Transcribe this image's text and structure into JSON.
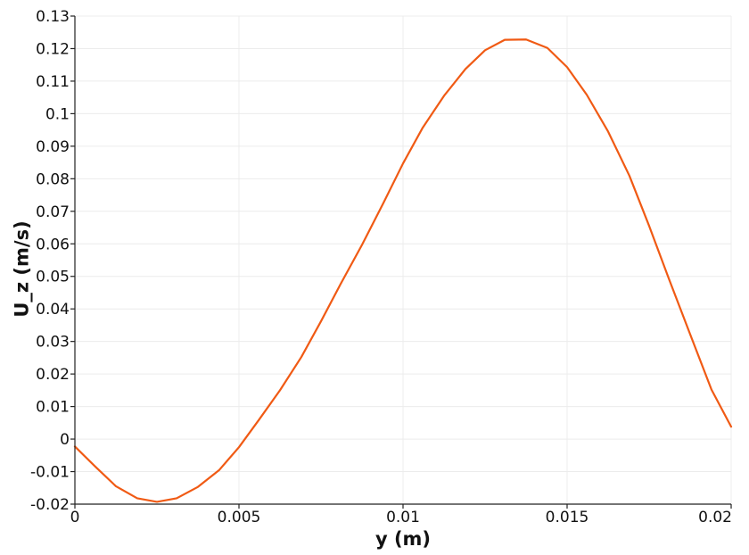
{
  "chart_data": {
    "type": "line",
    "title": "",
    "xlabel": "y (m)",
    "ylabel": "U_z (m/s)",
    "xlim": [
      0,
      0.02
    ],
    "ylim": [
      -0.02,
      0.13
    ],
    "x_ticks": [
      {
        "value": 0,
        "label": "0"
      },
      {
        "value": 0.005,
        "label": "0.005"
      },
      {
        "value": 0.01,
        "label": "0.01"
      },
      {
        "value": 0.015,
        "label": "0.015"
      },
      {
        "value": 0.02,
        "label": "0.02"
      }
    ],
    "y_ticks": [
      {
        "value": -0.02,
        "label": "-0.02"
      },
      {
        "value": -0.01,
        "label": "-0.01"
      },
      {
        "value": 0,
        "label": "0"
      },
      {
        "value": 0.01,
        "label": "0.01"
      },
      {
        "value": 0.02,
        "label": "0.02"
      },
      {
        "value": 0.03,
        "label": "0.03"
      },
      {
        "value": 0.04,
        "label": "0.04"
      },
      {
        "value": 0.05,
        "label": "0.05"
      },
      {
        "value": 0.06,
        "label": "0.06"
      },
      {
        "value": 0.07,
        "label": "0.07"
      },
      {
        "value": 0.08,
        "label": "0.08"
      },
      {
        "value": 0.09,
        "label": "0.09"
      },
      {
        "value": 0.1,
        "label": "0.1"
      },
      {
        "value": 0.11,
        "label": "0.11"
      },
      {
        "value": 0.12,
        "label": "0.12"
      },
      {
        "value": 0.13,
        "label": "0.13"
      }
    ],
    "grid": true,
    "legend": "none",
    "series": [
      {
        "color": "#f05a14",
        "x": [
          0,
          0.000625,
          0.00125,
          0.0019,
          0.0025,
          0.0031,
          0.00375,
          0.0044,
          0.005,
          0.0056,
          0.00625,
          0.0069,
          0.0075,
          0.0081,
          0.00875,
          0.0094,
          0.01,
          0.0106,
          0.01125,
          0.0119,
          0.0125,
          0.0131,
          0.01375,
          0.0144,
          0.015,
          0.0156,
          0.01625,
          0.0169,
          0.0175,
          0.0181,
          0.01875,
          0.0194,
          0.02
        ],
        "y": [
          -0.0023,
          -0.0085,
          -0.0145,
          -0.0182,
          -0.0193,
          -0.0182,
          -0.0147,
          -0.0095,
          -0.0025,
          0.0058,
          0.015,
          0.0252,
          0.0362,
          0.0477,
          0.0597,
          0.0725,
          0.0847,
          0.0957,
          0.1055,
          0.1137,
          0.1195,
          0.1227,
          0.1228,
          0.1202,
          0.1143,
          0.1058,
          0.0945,
          0.0809,
          0.0655,
          0.0493,
          0.0322,
          0.0152,
          0.0038
        ]
      }
    ]
  }
}
